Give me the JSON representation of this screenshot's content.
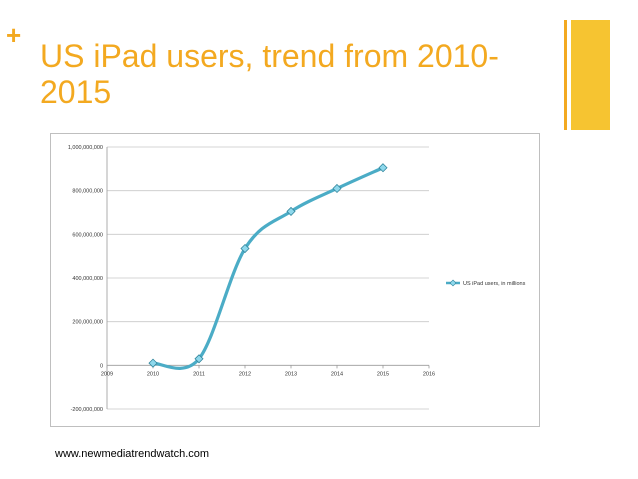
{
  "slide": {
    "plus": "+",
    "title": "US iPad users, trend from 2010-2015",
    "source": "www.newmediatrendwatch.com",
    "accent_color": "#F3A920",
    "accent_color_light": "#F6C431"
  },
  "chart_data": {
    "type": "line",
    "title": "",
    "xlabel": "",
    "ylabel": "",
    "x_ticks": [
      "2009",
      "2010",
      "2011",
      "2012",
      "2013",
      "2014",
      "2015",
      "2016"
    ],
    "y_ticks": [
      "-200,000,000",
      "0",
      "200,000,000",
      "400,000,000",
      "600,000,000",
      "800,000,000",
      "1,000,000,000"
    ],
    "xlim": [
      2009,
      2016
    ],
    "ylim": [
      -200000000,
      1000000000
    ],
    "grid": "horizontal",
    "legend_position": "right",
    "series": [
      {
        "name": "US iPad users, in millions",
        "color": "#4BACC6",
        "smooth": true,
        "marker": "diamond",
        "x": [
          2010,
          2011,
          2012,
          2013,
          2014,
          2015
        ],
        "values": [
          10000000,
          30000000,
          535000000,
          705000000,
          810000000,
          905000000
        ]
      }
    ]
  }
}
